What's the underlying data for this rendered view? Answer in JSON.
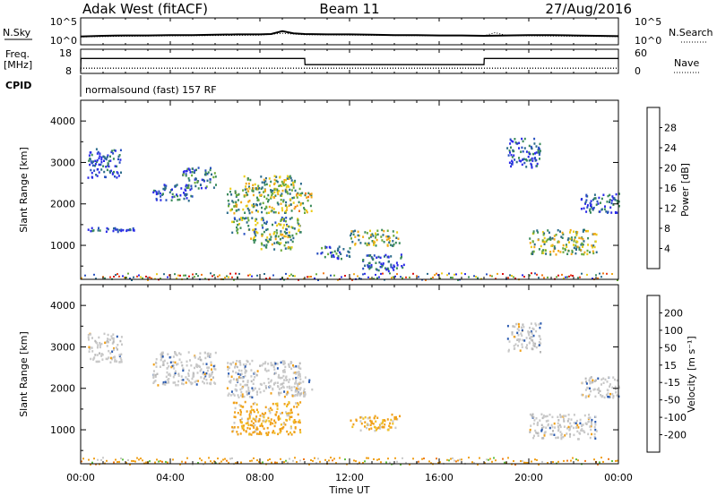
{
  "header": {
    "radar": "Adak West (fitACF)",
    "beam": "Beam 11",
    "date": "27/Aug/2016"
  },
  "summary_panels": {
    "nsky_label": "N.Sky",
    "nsky_ticks": [
      "10^5",
      "10^0"
    ],
    "nsearch_label": "N.Search",
    "nsearch_ticks": [
      "10^5",
      "10^0"
    ],
    "freq_label_1": "Freq.",
    "freq_label_2": "[MHz]",
    "freq_ticks": [
      "18",
      "8"
    ],
    "nave_label": "Nave",
    "nave_ticks": [
      "60",
      "0"
    ],
    "cpid_label": "CPID",
    "cpid_text": "normalsound (fast) 157 RF"
  },
  "colors": {
    "power": [
      "#2a2ae8",
      "#2850c0",
      "#2a6a8a",
      "#3a8a5a",
      "#6aaa3a",
      "#eacc18",
      "#f0a818",
      "#f07818",
      "#e83a18",
      "#d81010"
    ],
    "velocity": [
      "#d82010",
      "#f04818",
      "#f07a18",
      "#f0a018",
      "#f0c028",
      "#c8c8c8",
      "#b8b8b8",
      "#60c040",
      "#2a8a6a",
      "#2a5ab0",
      "#2030d0"
    ]
  },
  "chart_data": [
    {
      "type": "line",
      "panel": "N.Sky / N.Search",
      "x_unit": "hours UT",
      "xlim": [
        0,
        24
      ],
      "series": [
        {
          "name": "N.Sky",
          "style": "solid",
          "x": [
            0,
            1,
            2,
            3,
            4,
            5,
            6,
            7,
            8,
            8.5,
            9,
            9.5,
            10,
            11,
            12,
            13,
            14,
            15,
            16,
            17,
            18,
            19,
            20,
            21,
            22,
            23,
            24
          ],
          "y": [
            0.3,
            0.5,
            0.6,
            0.6,
            0.7,
            0.7,
            0.8,
            0.9,
            0.9,
            1.0,
            1.8,
            1.2,
            1.0,
            0.9,
            0.9,
            0.8,
            0.7,
            0.7,
            0.6,
            0.6,
            0.5,
            0.6,
            0.7,
            0.7,
            0.6,
            0.5,
            0.4
          ]
        },
        {
          "name": "N.Search",
          "style": "dotted",
          "x": [
            0,
            2,
            4,
            6,
            8,
            9,
            10,
            12,
            14,
            16,
            18,
            18.5,
            19,
            20,
            22,
            24
          ],
          "y": [
            0.2,
            0.4,
            0.5,
            0.6,
            0.7,
            1.2,
            0.8,
            0.7,
            0.6,
            0.5,
            0.5,
            1.4,
            0.6,
            0.5,
            0.4,
            0.3
          ]
        }
      ]
    },
    {
      "type": "line",
      "panel": "Freq. / Nave",
      "x_unit": "hours UT",
      "xlim": [
        0,
        24
      ],
      "series": [
        {
          "name": "Freq. [MHz]",
          "style": "solid",
          "x": [
            0,
            0.01,
            10,
            10.01,
            18,
            18.01,
            24
          ],
          "y": [
            8,
            14.4,
            14.4,
            11.4,
            11.4,
            14.4,
            14.4
          ],
          "ylim": [
            8,
            18
          ]
        },
        {
          "name": "Nave",
          "style": "dotted",
          "x": [
            0,
            24
          ],
          "y": [
            10,
            10
          ],
          "ylim": [
            0,
            60
          ]
        }
      ]
    },
    {
      "type": "heatmap",
      "panel": "Power",
      "x_label": "",
      "ylabel": "Slant Range [km]",
      "xlim": [
        0,
        24
      ],
      "ylim": [
        180,
        4500
      ],
      "yticks": [
        "1000",
        "2000",
        "3000",
        "4000"
      ],
      "colorbar_label": "Power [dB]",
      "colorbar_ticks": [
        "4",
        "8",
        "12",
        "16",
        "20",
        "24",
        "28"
      ],
      "cbar_range": [
        0,
        30
      ],
      "ground_scatter_band": [
        180,
        350
      ],
      "echo_regions": [
        {
          "t0": 0.3,
          "t1": 1.8,
          "r0": 2650,
          "r1": 3350,
          "p": 6
        },
        {
          "t0": 0.3,
          "t1": 2.5,
          "r0": 1350,
          "r1": 1450,
          "p": 5
        },
        {
          "t0": 3.2,
          "t1": 5.0,
          "r0": 2100,
          "r1": 2500,
          "p": 6
        },
        {
          "t0": 4.5,
          "t1": 6.0,
          "r0": 2400,
          "r1": 2900,
          "p": 8
        },
        {
          "t0": 6.5,
          "t1": 9.5,
          "r0": 1800,
          "r1": 2400,
          "p": 14
        },
        {
          "t0": 7.2,
          "t1": 9.8,
          "r0": 2300,
          "r1": 2700,
          "p": 14
        },
        {
          "t0": 6.7,
          "t1": 9.8,
          "r0": 1300,
          "r1": 1700,
          "p": 12
        },
        {
          "t0": 7.5,
          "t1": 9.5,
          "r0": 900,
          "r1": 1300,
          "p": 16
        },
        {
          "t0": 9.5,
          "t1": 10.3,
          "r0": 1800,
          "r1": 2300,
          "p": 18
        },
        {
          "t0": 10.5,
          "t1": 12.0,
          "r0": 700,
          "r1": 1000,
          "p": 8
        },
        {
          "t0": 12.0,
          "t1": 14.2,
          "r0": 1000,
          "r1": 1400,
          "p": 14
        },
        {
          "t0": 12.5,
          "t1": 14.5,
          "r0": 400,
          "r1": 800,
          "p": 6
        },
        {
          "t0": 19.0,
          "t1": 20.5,
          "r0": 2900,
          "r1": 3600,
          "p": 6
        },
        {
          "t0": 20.0,
          "t1": 23.0,
          "r0": 800,
          "r1": 1400,
          "p": 14
        },
        {
          "t0": 22.3,
          "t1": 24.0,
          "r0": 1800,
          "r1": 2300,
          "p": 6
        }
      ]
    },
    {
      "type": "heatmap",
      "panel": "Velocity",
      "x_label": "Time UT",
      "ylabel": "Slant Range [km]",
      "xlim": [
        0,
        24
      ],
      "xticks": [
        "00:00",
        "04:00",
        "08:00",
        "12:00",
        "16:00",
        "20:00",
        "00:00"
      ],
      "ylim": [
        180,
        4500
      ],
      "yticks": [
        "1000",
        "2000",
        "3000",
        "4000"
      ],
      "colorbar_label": "Velocity [m s⁻¹]",
      "colorbar_ticks": [
        "-200",
        "-100",
        "-50",
        "-15",
        "15",
        "50",
        "100",
        "200"
      ],
      "echo_regions": [
        {
          "t0": 0.3,
          "t1": 1.8,
          "r0": 2650,
          "r1": 3350,
          "v": "grey"
        },
        {
          "t0": 3.2,
          "t1": 6.0,
          "r0": 2100,
          "r1": 2900,
          "v": "grey"
        },
        {
          "t0": 6.5,
          "t1": 9.8,
          "r0": 1800,
          "r1": 2700,
          "v": "grey"
        },
        {
          "t0": 6.7,
          "t1": 9.8,
          "r0": 900,
          "r1": 1700,
          "v": "orange"
        },
        {
          "t0": 9.5,
          "t1": 10.3,
          "r0": 1800,
          "r1": 2300,
          "v": "grey"
        },
        {
          "t0": 12.0,
          "t1": 14.2,
          "r0": 1000,
          "r1": 1400,
          "v": "orange"
        },
        {
          "t0": 19.0,
          "t1": 20.5,
          "r0": 2900,
          "r1": 3600,
          "v": "grey"
        },
        {
          "t0": 20.0,
          "t1": 23.0,
          "r0": 800,
          "r1": 1400,
          "v": "grey"
        },
        {
          "t0": 22.3,
          "t1": 24.0,
          "r0": 1800,
          "r1": 2300,
          "v": "grey"
        }
      ]
    }
  ]
}
